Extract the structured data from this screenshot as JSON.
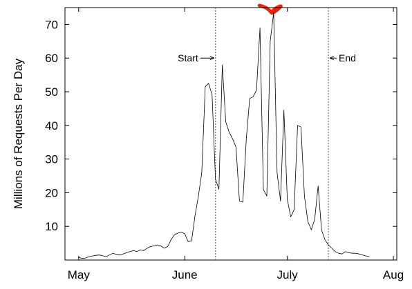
{
  "chart_data": {
    "type": "line",
    "ylabel": "Millions of Requests Per Day",
    "ylim": [
      0,
      75
    ],
    "yticks": [
      10,
      20,
      30,
      40,
      50,
      60,
      70
    ],
    "xticks": [
      {
        "label": "May",
        "x": 0
      },
      {
        "label": "June",
        "x": 31
      },
      {
        "label": "July",
        "x": 61
      },
      {
        "label": "Aug",
        "x": 92
      }
    ],
    "xlim": [
      -4,
      93
    ],
    "grid": false,
    "vlines": [
      {
        "label": "Start",
        "x": 40,
        "label_side": "left",
        "label_y": 60
      },
      {
        "label": "End",
        "x": 73,
        "label_side": "right",
        "label_y": 60
      }
    ],
    "marker_color": "#e8220c",
    "series": [
      {
        "x": [
          0,
          1,
          2,
          3,
          4,
          5,
          6,
          7,
          8,
          9,
          10,
          11,
          12,
          13,
          14,
          15,
          16,
          17,
          18,
          19,
          20,
          21,
          22,
          23,
          24,
          25,
          26,
          27,
          28,
          29,
          30,
          31,
          32,
          33,
          34,
          35,
          36,
          37,
          38,
          39,
          40,
          41,
          42,
          43,
          44,
          45,
          46,
          47,
          48,
          49,
          50,
          51,
          52,
          53,
          54,
          55,
          56,
          57,
          58,
          59,
          60,
          61,
          62,
          63,
          64,
          65,
          66,
          67,
          68,
          69,
          70,
          71,
          72,
          73,
          74,
          75,
          76,
          77,
          78,
          79,
          80,
          81,
          82,
          83,
          84,
          85
        ],
        "values": [
          0.8,
          0.5,
          0.6,
          1.0,
          1.2,
          1.4,
          1.5,
          1.3,
          1.0,
          1.5,
          2.0,
          1.7,
          1.5,
          1.8,
          2.2,
          2.5,
          2.8,
          2.5,
          3.0,
          2.8,
          3.5,
          4.0,
          4.2,
          4.5,
          4.2,
          3.5,
          4.0,
          6.0,
          7.5,
          8.0,
          8.3,
          7.8,
          5.5,
          5.7,
          13.0,
          19.0,
          26.0,
          51.5,
          52.5,
          49.0,
          24.0,
          21.0,
          58.0,
          41.0,
          38.0,
          36.0,
          33.5,
          17.5,
          17.2,
          36.0,
          48.0,
          48.5,
          50.5,
          69.0,
          21.0,
          19.0,
          65.0,
          73.5,
          26.0,
          17.5,
          44.5,
          18.0,
          12.8,
          15.0,
          40.0,
          39.5,
          19.0,
          11.5,
          9.0,
          12.0,
          22.0,
          9.0,
          6.0,
          4.5,
          3.5,
          2.5,
          2.0,
          1.8,
          2.5,
          2.2,
          2.0,
          2.0,
          1.8,
          1.5,
          1.2,
          1.0
        ]
      }
    ]
  }
}
